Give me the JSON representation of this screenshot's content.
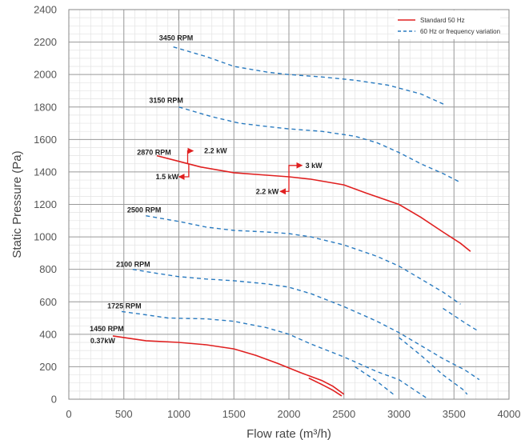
{
  "chart_data": {
    "type": "line",
    "xlabel": "Flow rate (m³/h)",
    "ylabel": "Static Pressure (Pa)",
    "xlim": [
      0,
      4000
    ],
    "ylim": [
      0,
      2400
    ],
    "x_ticks": [
      0,
      500,
      1000,
      1500,
      2000,
      2500,
      3000,
      3500,
      4000
    ],
    "y_ticks": [
      0,
      200,
      400,
      600,
      800,
      1000,
      1200,
      1400,
      1600,
      1800,
      2000,
      2200,
      2400
    ],
    "x_tick_labels": [
      "0",
      "500",
      "1000",
      "1500",
      "2000",
      "2500",
      "3000",
      "3500",
      "4000"
    ],
    "y_tick_labels": [
      "0",
      "200",
      "400",
      "600",
      "800",
      "1000",
      "1200",
      "1400",
      "1600",
      "1800",
      "2000",
      "2200",
      "2400"
    ],
    "grid": true,
    "legend": {
      "position": "top-right",
      "entries": [
        {
          "label": "Standard 50 Hz",
          "color": "#e02020",
          "style": "solid"
        },
        {
          "label": "60 Hz or frequency variation",
          "color": "#2a7bc0",
          "style": "dashed"
        }
      ]
    },
    "series": [
      {
        "label": "3450 RPM",
        "style": "dashed",
        "color": "#2a7bc0",
        "label_at": [
          820,
          2210
        ],
        "points": [
          [
            950,
            2170
          ],
          [
            1250,
            2110
          ],
          [
            1500,
            2050
          ],
          [
            1800,
            2015
          ],
          [
            2000,
            2000
          ],
          [
            2300,
            1985
          ],
          [
            2600,
            1965
          ],
          [
            2900,
            1935
          ],
          [
            3200,
            1880
          ],
          [
            3430,
            1810
          ]
        ]
      },
      {
        "label": "3150 RPM",
        "style": "dashed",
        "color": "#2a7bc0",
        "label_at": [
          730,
          1825
        ],
        "points": [
          [
            1000,
            1800
          ],
          [
            1300,
            1740
          ],
          [
            1550,
            1700
          ],
          [
            1800,
            1680
          ],
          [
            2000,
            1665
          ],
          [
            2300,
            1650
          ],
          [
            2600,
            1620
          ],
          [
            2800,
            1580
          ],
          [
            3000,
            1520
          ],
          [
            3200,
            1450
          ],
          [
            3400,
            1390
          ],
          [
            3560,
            1335
          ]
        ]
      },
      {
        "label": "2870 RPM",
        "style": "solid",
        "color": "#e02020",
        "label_at": [
          620,
          1505
        ],
        "points": [
          [
            800,
            1500
          ],
          [
            1000,
            1465
          ],
          [
            1200,
            1430
          ],
          [
            1500,
            1395
          ],
          [
            1800,
            1380
          ],
          [
            2000,
            1370
          ],
          [
            2200,
            1355
          ],
          [
            2500,
            1320
          ],
          [
            2700,
            1270
          ],
          [
            3000,
            1200
          ],
          [
            3200,
            1120
          ],
          [
            3400,
            1030
          ],
          [
            3560,
            960
          ],
          [
            3650,
            910
          ]
        ]
      },
      {
        "label": "2500 RPM",
        "style": "dashed",
        "color": "#2a7bc0",
        "label_at": [
          530,
          1150
        ],
        "points": [
          [
            700,
            1130
          ],
          [
            1000,
            1095
          ],
          [
            1250,
            1060
          ],
          [
            1500,
            1040
          ],
          [
            1800,
            1030
          ],
          [
            2000,
            1020
          ],
          [
            2200,
            1000
          ],
          [
            2500,
            950
          ],
          [
            2800,
            880
          ],
          [
            3000,
            820
          ],
          [
            3200,
            740
          ],
          [
            3400,
            660
          ],
          [
            3560,
            585
          ]
        ]
      },
      {
        "label": "2100 RPM",
        "style": "dashed",
        "color": "#2a7bc0",
        "label_at": [
          430,
          815
        ],
        "points": [
          [
            580,
            800
          ],
          [
            800,
            775
          ],
          [
            1000,
            755
          ],
          [
            1250,
            740
          ],
          [
            1500,
            730
          ],
          [
            1800,
            710
          ],
          [
            2000,
            690
          ],
          [
            2200,
            650
          ],
          [
            2500,
            570
          ],
          [
            2800,
            480
          ],
          [
            3000,
            410
          ],
          [
            3200,
            330
          ],
          [
            3400,
            250
          ],
          [
            3600,
            180
          ],
          [
            3730,
            120
          ]
        ]
      },
      {
        "label": "1725 RPM",
        "style": "dashed",
        "color": "#2a7bc0",
        "label_at": [
          350,
          560
        ],
        "points": [
          [
            480,
            540
          ],
          [
            700,
            520
          ],
          [
            900,
            500
          ],
          [
            1250,
            495
          ],
          [
            1500,
            480
          ],
          [
            1800,
            440
          ],
          [
            2000,
            400
          ],
          [
            2200,
            340
          ],
          [
            2500,
            260
          ],
          [
            2800,
            170
          ],
          [
            3000,
            120
          ],
          [
            3200,
            30
          ],
          [
            3380,
            -50
          ]
        ]
      },
      {
        "label": "1450 RPM",
        "style": "solid",
        "color": "#e02020",
        "label_at": [
          190,
          420
        ],
        "points": [
          [
            400,
            390
          ],
          [
            700,
            360
          ],
          [
            1000,
            350
          ],
          [
            1250,
            335
          ],
          [
            1500,
            310
          ],
          [
            1700,
            270
          ],
          [
            1900,
            220
          ],
          [
            2100,
            165
          ],
          [
            2300,
            115
          ],
          [
            2400,
            80
          ],
          [
            2500,
            30
          ]
        ]
      },
      {
        "label": "1450 RPM",
        "style": "solid",
        "color": "#e02020",
        "points": [
          [
            2180,
            130
          ],
          [
            2300,
            90
          ],
          [
            2400,
            55
          ],
          [
            2480,
            20
          ]
        ]
      },
      {
        "label": "1725 RPM",
        "style": "dashed",
        "color": "#2a7bc0",
        "points": [
          [
            2600,
            200
          ],
          [
            2800,
            110
          ],
          [
            2950,
            30
          ]
        ]
      },
      {
        "label": "2100 RPM",
        "style": "dashed",
        "color": "#2a7bc0",
        "points": [
          [
            3000,
            380
          ],
          [
            3200,
            270
          ],
          [
            3400,
            150
          ],
          [
            3580,
            60
          ],
          [
            3620,
            30
          ]
        ]
      },
      {
        "label": "2500 RPM",
        "style": "dashed",
        "color": "#2a7bc0",
        "points": [
          [
            3400,
            560
          ],
          [
            3600,
            470
          ],
          [
            3720,
            420
          ]
        ]
      }
    ],
    "annotations": [
      {
        "text": "0.37kW",
        "at": [
          195,
          360
        ]
      },
      {
        "text": "2.2 kW",
        "at": [
          1230,
          1530
        ],
        "arrow_from": [
          1080,
          1530
        ],
        "arrow_to": [
          1130,
          1530
        ],
        "stem_from": [
          1080,
          1450
        ]
      },
      {
        "text": "1.5 kW",
        "at": [
          790,
          1370
        ],
        "arrow_from": [
          1090,
          1370
        ],
        "arrow_to": [
          1000,
          1370
        ],
        "stem_from": [
          1090,
          1450
        ]
      },
      {
        "text": "3 kW",
        "at": [
          2150,
          1440
        ],
        "arrow_from": [
          2000,
          1440
        ],
        "arrow_to": [
          2120,
          1440
        ],
        "stem_from": [
          2000,
          1370
        ]
      },
      {
        "text": "2.2 kW",
        "at": [
          1700,
          1280
        ],
        "arrow_from": [
          2000,
          1280
        ],
        "arrow_to": [
          1920,
          1280
        ],
        "stem_from": [
          2000,
          1370
        ]
      }
    ]
  }
}
